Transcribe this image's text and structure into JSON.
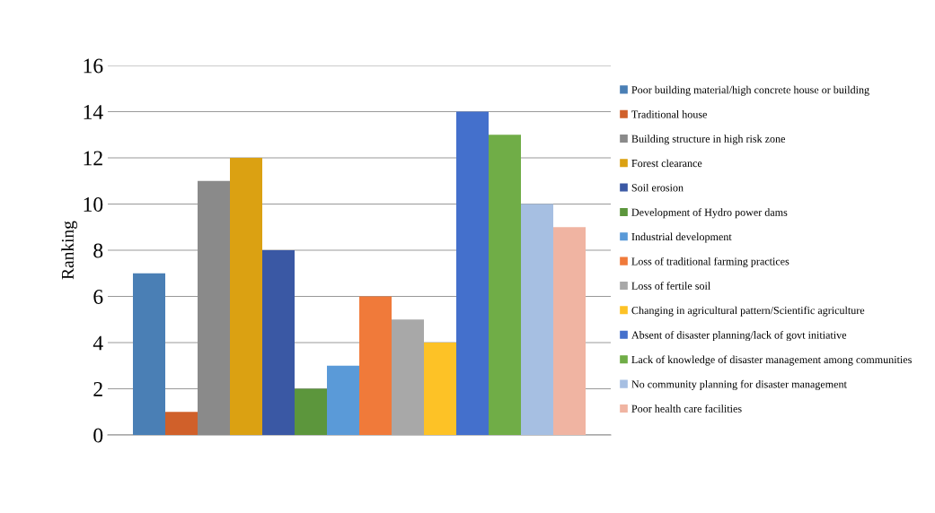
{
  "chart_data": {
    "type": "bar",
    "ylabel": "Ranking",
    "categories": [
      null
    ],
    "ylim": [
      0,
      16
    ],
    "yticks": [
      0,
      2,
      4,
      6,
      8,
      10,
      12,
      14,
      16
    ],
    "grid": "y",
    "legend": "right",
    "series": [
      {
        "name": "Poor building material/high concrete house or building",
        "color": "#4a7fb5",
        "values": [
          7
        ]
      },
      {
        "name": "Traditional house",
        "color": "#d0602a",
        "values": [
          1
        ]
      },
      {
        "name": "Building structure in high risk zone",
        "color": "#8a8a8a",
        "values": [
          11
        ]
      },
      {
        "name": "Forest clearance",
        "color": "#dba112",
        "values": [
          12
        ]
      },
      {
        "name": "Soil erosion",
        "color": "#3a58a4",
        "values": [
          8
        ]
      },
      {
        "name": "Development of Hydro power dams",
        "color": "#5c963c",
        "values": [
          2
        ]
      },
      {
        "name": "Industrial development",
        "color": "#5a9ad8",
        "values": [
          3
        ]
      },
      {
        "name": "Loss of traditional farming practices",
        "color": "#f07a3a",
        "values": [
          6
        ]
      },
      {
        "name": "Loss of fertile soil",
        "color": "#a8a8a8",
        "values": [
          5
        ]
      },
      {
        "name": "Changing in agricultural pattern/Scientific agriculture",
        "color": "#fdc226",
        "values": [
          4
        ]
      },
      {
        "name": "Absent of disaster planning/lack of govt initiative",
        "color": "#4470cc",
        "values": [
          14
        ]
      },
      {
        "name": "Lack of knowledge of disaster management among communities",
        "color": "#70ad47",
        "values": [
          13
        ]
      },
      {
        "name": "No community planning for disaster management",
        "color": "#a6bfe2",
        "values": [
          10
        ]
      },
      {
        "name": "Poor health care facilities",
        "color": "#f0b4a2",
        "values": [
          9
        ]
      }
    ]
  }
}
